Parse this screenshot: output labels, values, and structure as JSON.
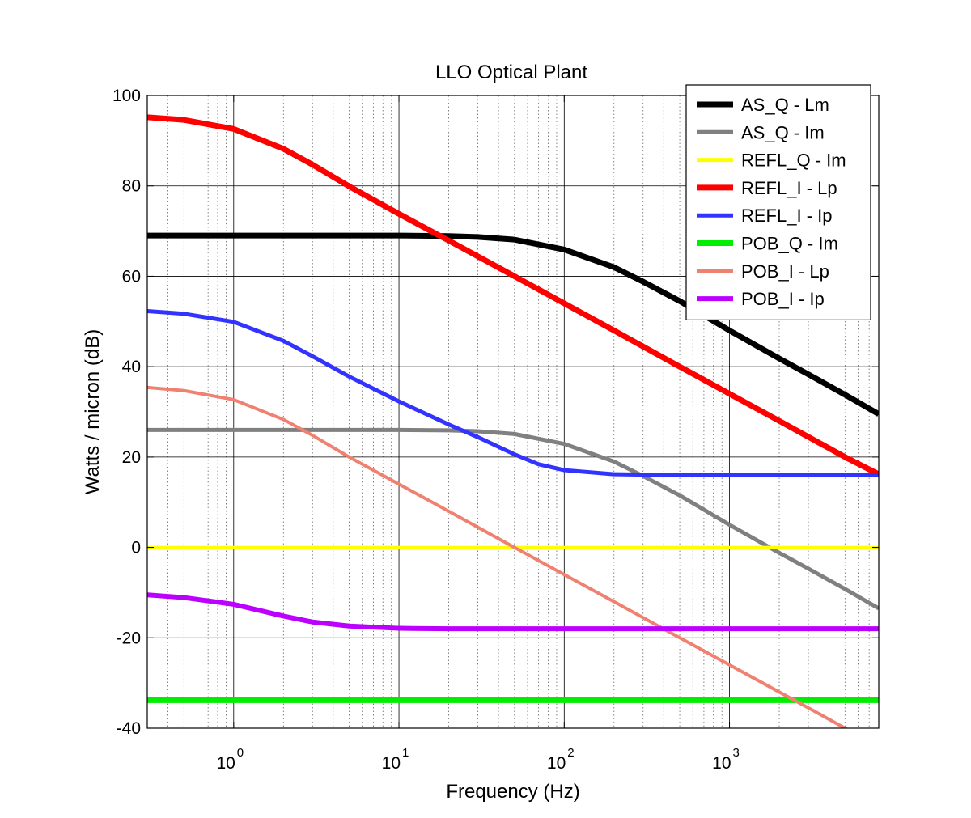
{
  "chart_data": {
    "type": "line",
    "title": "LLO Optical Plant",
    "xlabel": "Frequency  (Hz)",
    "ylabel": "Watts / micron (dB)",
    "xscale": "log",
    "xlim": [
      0.3,
      8000
    ],
    "ylim": [
      -40,
      100
    ],
    "yticks": [
      -40,
      -20,
      0,
      20,
      40,
      60,
      80,
      100
    ],
    "xticks": [
      {
        "value": 1,
        "base": "10",
        "exp": "0"
      },
      {
        "value": 10,
        "base": "10",
        "exp": "1"
      },
      {
        "value": 100,
        "base": "10",
        "exp": "2"
      },
      {
        "value": 1000,
        "base": "10",
        "exp": "3"
      }
    ],
    "grid": true,
    "legend_position": "top-right",
    "series": [
      {
        "name": "AS_Q - Lm",
        "color": "#000000",
        "width": 7,
        "x": [
          0.3,
          1,
          3,
          10,
          20,
          30,
          50,
          100,
          200,
          300,
          500,
          1000,
          2000,
          3000,
          5000,
          8000
        ],
        "y": [
          69,
          69,
          69,
          69,
          68.9,
          68.7,
          68.1,
          65.9,
          62,
          58.8,
          54.5,
          48,
          41.8,
          38.3,
          33.8,
          29.5
        ]
      },
      {
        "name": "AS_Q - Im",
        "color": "#808080",
        "width": 5,
        "x": [
          0.3,
          1,
          3,
          10,
          20,
          30,
          50,
          100,
          200,
          300,
          500,
          1000,
          2000,
          3000,
          5000,
          8000
        ],
        "y": [
          26,
          26,
          26,
          26,
          25.9,
          25.7,
          25.1,
          22.9,
          19,
          15.8,
          11.5,
          5,
          -1.2,
          -4.7,
          -9.2,
          -13.5
        ]
      },
      {
        "name": "REFL_Q - Im",
        "color": "#ffff00",
        "width": 4,
        "x": [
          0.3,
          8000
        ],
        "y": [
          0,
          0
        ]
      },
      {
        "name": "REFL_I - Lp",
        "color": "#ff0000",
        "width": 7,
        "x": [
          0.3,
          0.5,
          1,
          2,
          3,
          5,
          10,
          20,
          50,
          100,
          200,
          500,
          1000,
          2000,
          5000,
          8000
        ],
        "y": [
          95.2,
          94.6,
          92.6,
          88.2,
          84.7,
          79.9,
          73.8,
          67.9,
          60,
          54,
          48,
          40,
          34,
          28,
          20,
          16.2
        ]
      },
      {
        "name": "REFL_I - Ip",
        "color": "#3333ff",
        "width": 5,
        "x": [
          0.3,
          0.5,
          1,
          2,
          3,
          5,
          10,
          20,
          30,
          50,
          70,
          100,
          200,
          500,
          1000,
          8000
        ],
        "y": [
          52.3,
          51.7,
          49.9,
          45.7,
          42.3,
          37.8,
          32.3,
          27.2,
          24.4,
          20.6,
          18.4,
          17.1,
          16.2,
          16,
          16,
          16
        ]
      },
      {
        "name": "POB_Q - Im",
        "color": "#00ee00",
        "width": 7,
        "x": [
          0.3,
          8000
        ],
        "y": [
          -33.8,
          -33.8
        ]
      },
      {
        "name": "POB_I - Lp",
        "color": "#f08070",
        "width": 4,
        "x": [
          0.3,
          0.5,
          1,
          2,
          3,
          5,
          10,
          20,
          50,
          100,
          200,
          500,
          1000,
          2000,
          3000,
          5000,
          6500
        ],
        "y": [
          35.4,
          34.7,
          32.7,
          28.3,
          24.8,
          20,
          14,
          8,
          0,
          -6,
          -12,
          -20,
          -26,
          -32,
          -35.5,
          -40,
          -42.3
        ]
      },
      {
        "name": "POB_I - Ip",
        "color": "#bb00ff",
        "width": 6,
        "x": [
          0.3,
          0.5,
          1,
          2,
          3,
          5,
          10,
          20,
          50,
          100,
          8000
        ],
        "y": [
          -10.5,
          -11.1,
          -12.6,
          -15.2,
          -16.5,
          -17.4,
          -17.9,
          -18,
          -18,
          -18,
          -18
        ]
      }
    ]
  }
}
